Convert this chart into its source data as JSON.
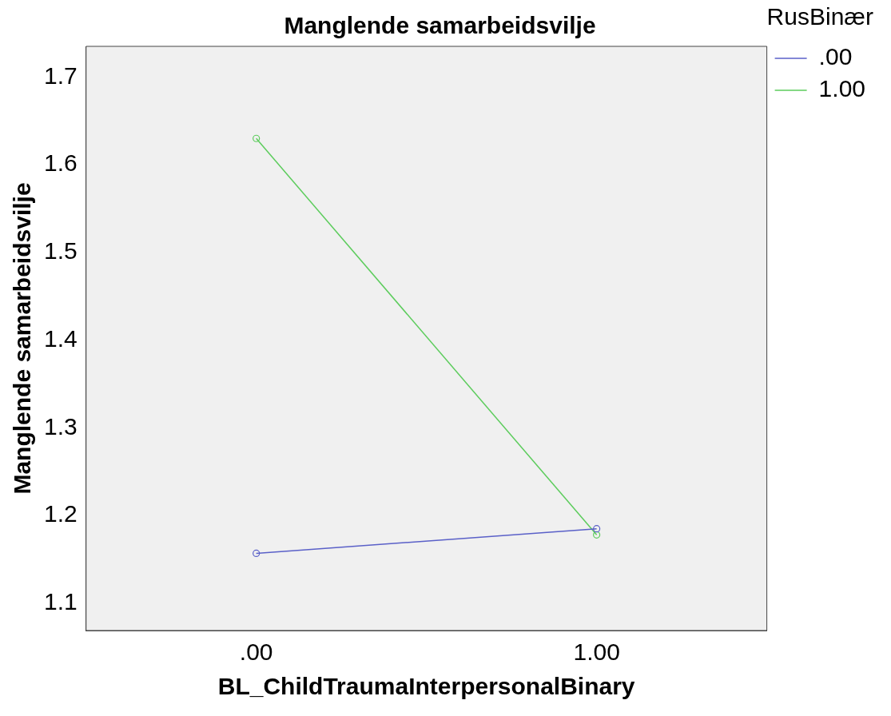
{
  "chart_data": {
    "type": "line",
    "title": "Manglende samarbeidsvilje",
    "xlabel": "BL_ChildTraumaInterpersonalBinary",
    "ylabel": "Manglende samarbeidsvilje",
    "legend_title": "RusBinær",
    "categories": [
      ".00",
      "1.00"
    ],
    "series": [
      {
        "name": ".00",
        "color": "#5a60c8",
        "values": [
          1.157,
          1.185
        ]
      },
      {
        "name": "1.00",
        "color": "#5ccc5c",
        "values": [
          1.63,
          1.178
        ]
      }
    ],
    "ylim": [
      1.069,
      1.735
    ],
    "yticks": [
      1.1,
      1.2,
      1.3,
      1.4,
      1.5,
      1.6,
      1.7
    ],
    "grid": false,
    "legend": "top right",
    "marker": "circle",
    "line_style": "solid"
  }
}
